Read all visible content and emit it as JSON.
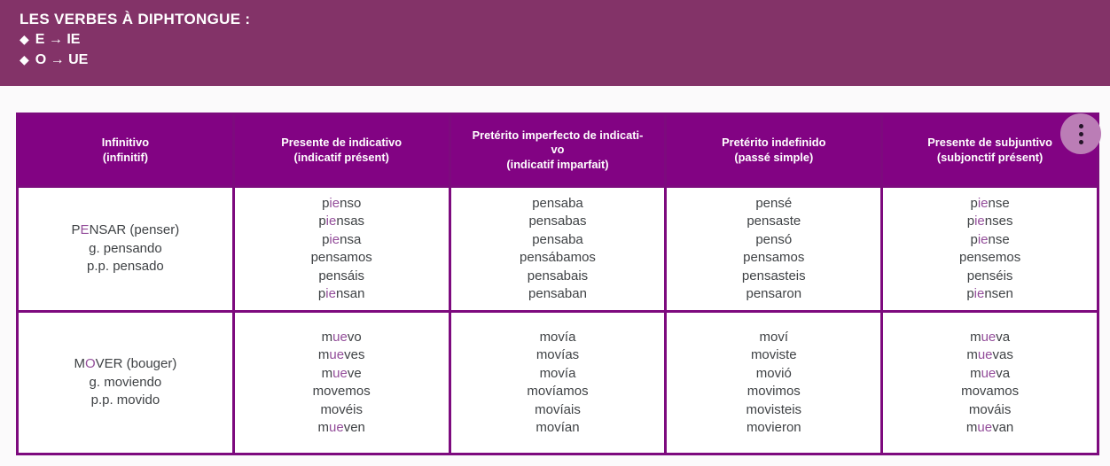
{
  "banner": {
    "title": "LES VERBES À DIPHTONGUE :",
    "bullet_icon": "◆",
    "bullets": [
      "E → IE",
      "O → UE"
    ]
  },
  "icons": {
    "kebab_menu": "⋮",
    "bullet": "◆"
  },
  "table": {
    "headers": [
      "Infinitivo\n(infinitif)",
      "Presente de indicativo\n(indicatif présent)",
      "Pretérito imperfecto de indicati-\nvo\n(indicatif imparfait)",
      "Pretérito indefinido\n(passé simple)",
      "Presente de subjuntivo\n(subjonctif présent)"
    ],
    "rows": [
      {
        "verb": "pensar",
        "cells": [
          [
            "P[E]NSAR (penser)",
            "g. pensando",
            "p.p. pensado"
          ],
          [
            "p[ie]nso",
            "p[ie]nsas",
            "p[ie]nsa",
            "pensamos",
            "pensáis",
            "p[ie]nsan"
          ],
          [
            "pensaba",
            "pensabas",
            "pensaba",
            "pensábamos",
            "pensabais",
            "pensaban"
          ],
          [
            "pensé",
            "pensaste",
            "pensó",
            "pensamos",
            "pensasteis",
            "pensaron"
          ],
          [
            "p[ie]nse",
            "p[ie]nses",
            "p[ie]nse",
            "pensemos",
            "penséis",
            "p[ie]nsen"
          ]
        ]
      },
      {
        "verb": "mover",
        "cells": [
          [
            "M[O]VER (bouger)",
            "g. moviendo",
            "p.p. movido"
          ],
          [
            "m[ue]vo",
            "m[ue]ves",
            "m[ue]ve",
            "movemos",
            "movéis",
            "m[ue]ven"
          ],
          [
            "movía",
            "movías",
            "movía",
            "movíamos",
            "movíais",
            "movían"
          ],
          [
            "moví",
            "moviste",
            "movió",
            "movimos",
            "movisteis",
            "movieron"
          ],
          [
            "m[ue]va",
            "m[ue]vas",
            "m[ue]va",
            "movamos",
            "mováis",
            "m[ue]van"
          ]
        ]
      }
    ]
  },
  "colors": {
    "banner-bg": "#833368",
    "header-bg": "#820383",
    "cell-border": "#7d0a7e",
    "highlight": "#934d9a",
    "menu-circle": "#bb7db6",
    "menu-dot": "#241428",
    "text": "#3f4245",
    "page-bg": "#fbfafb"
  }
}
